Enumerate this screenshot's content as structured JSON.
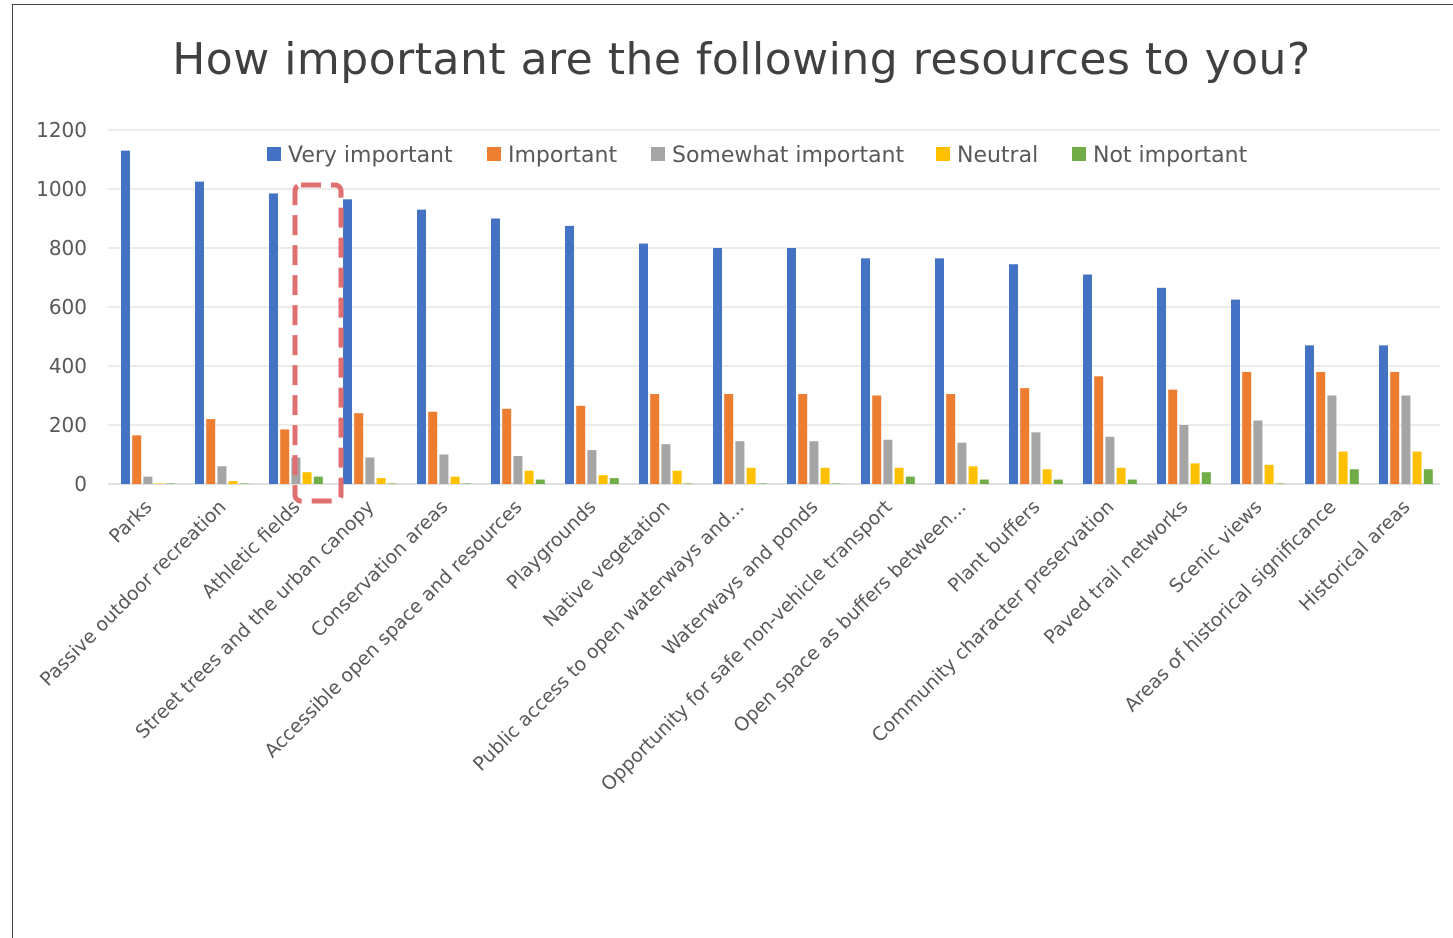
{
  "chart_data": {
    "type": "bar",
    "title": "How important are the following resources to you?",
    "xlabel": "",
    "ylabel": "",
    "ylim": [
      0,
      1200
    ],
    "yticks": [
      0,
      200,
      400,
      600,
      800,
      1000,
      1200
    ],
    "grid": true,
    "legend_position": "top",
    "categories": [
      "Parks",
      "Passive outdoor recreation",
      "Athletic fields",
      "Street trees and the urban canopy",
      "Conservation areas",
      "Accessible open space and resources",
      "Playgrounds",
      "Native vegetation",
      "Public access to open waterways and...",
      "Waterways and ponds",
      "Opportunity for safe non-vehicle transport",
      "Open space as buffers between...",
      "Plant buffers",
      "Community character preservation",
      "Paved trail networks",
      "Scenic views",
      "Areas of historical significance",
      "Historical areas"
    ],
    "series": [
      {
        "name": "Very important",
        "color": "#4472C4",
        "values": [
          1130,
          1025,
          985,
          965,
          930,
          900,
          875,
          815,
          800,
          800,
          765,
          765,
          745,
          710,
          665,
          625,
          470,
          470
        ]
      },
      {
        "name": "Important",
        "color": "#ED7D31",
        "values": [
          165,
          220,
          185,
          240,
          245,
          255,
          265,
          305,
          305,
          305,
          300,
          305,
          325,
          365,
          320,
          380,
          380,
          380
        ]
      },
      {
        "name": "Somewhat important",
        "color": "#A5A5A5",
        "values": [
          25,
          60,
          90,
          90,
          100,
          95,
          115,
          135,
          145,
          145,
          150,
          140,
          175,
          160,
          200,
          215,
          300,
          300
        ]
      },
      {
        "name": "Neutral",
        "color": "#FFC000",
        "values": [
          2,
          10,
          40,
          20,
          25,
          45,
          30,
          45,
          55,
          55,
          55,
          60,
          50,
          55,
          70,
          65,
          110,
          110
        ]
      },
      {
        "name": "Not important",
        "color": "#70AD47",
        "values": [
          2,
          2,
          25,
          2,
          2,
          15,
          20,
          2,
          2,
          2,
          25,
          15,
          15,
          15,
          40,
          2,
          50,
          50
        ]
      }
    ],
    "highlighted_category": "Athletic fields",
    "highlight_color": "#E07070"
  }
}
